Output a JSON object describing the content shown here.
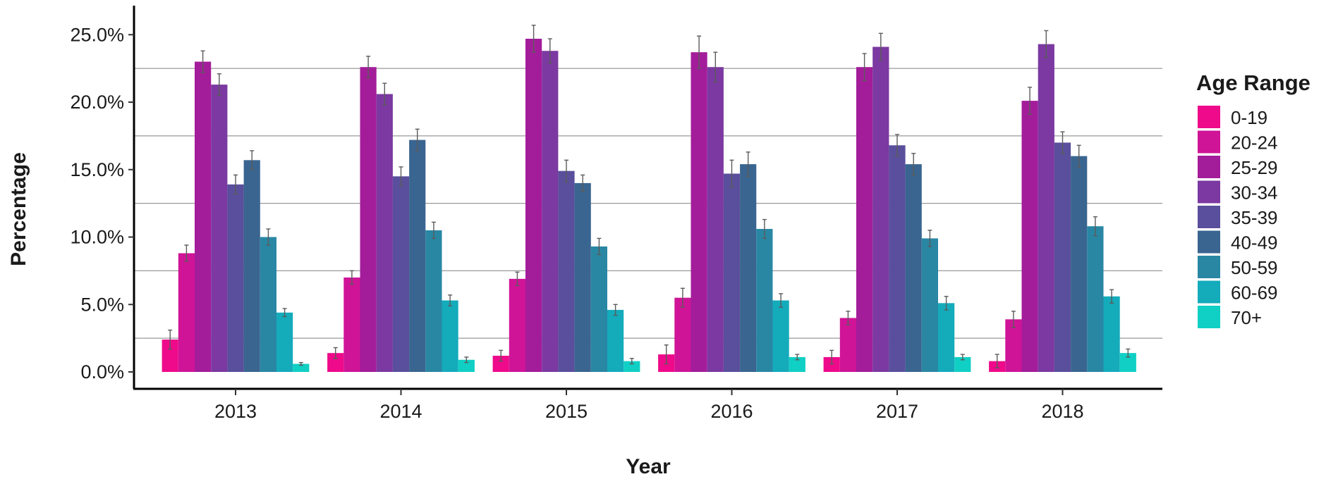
{
  "chart_data": {
    "type": "bar",
    "xlabel": "Year",
    "ylabel": "Percentage",
    "legend_title": "Age Range",
    "legend_position": "right",
    "ylim": [
      0,
      26.4
    ],
    "yticks": [
      0,
      5,
      10,
      15,
      20,
      25
    ],
    "ytick_labels": [
      "0.0%",
      "5.0%",
      "10.0%",
      "15.0%",
      "20.0%",
      "25.0%"
    ],
    "grid": "horizontal minor lines at 2.5, 7.5, 12.5, 17.5, 22.5",
    "categories": [
      "2013",
      "2014",
      "2015",
      "2016",
      "2017",
      "2018"
    ],
    "series": [
      {
        "name": "0-19",
        "color": "#ee0a8a",
        "values": [
          2.4,
          1.4,
          1.2,
          1.3,
          1.1,
          0.8
        ],
        "err": [
          0.7,
          0.4,
          0.4,
          0.7,
          0.5,
          0.5
        ]
      },
      {
        "name": "20-24",
        "color": "#cf1497",
        "values": [
          8.8,
          7.0,
          6.9,
          5.5,
          4.0,
          3.9
        ],
        "err": [
          0.6,
          0.5,
          0.5,
          0.7,
          0.5,
          0.6
        ]
      },
      {
        "name": "25-29",
        "color": "#a31d9a",
        "values": [
          23.0,
          22.6,
          24.7,
          23.7,
          22.6,
          20.1
        ],
        "err": [
          0.8,
          0.8,
          1.0,
          1.2,
          1.0,
          1.0
        ]
      },
      {
        "name": "30-34",
        "color": "#7b39a1",
        "values": [
          21.3,
          20.6,
          23.8,
          22.6,
          24.1,
          24.3
        ],
        "err": [
          0.8,
          0.8,
          0.9,
          1.1,
          1.0,
          1.0
        ]
      },
      {
        "name": "35-39",
        "color": "#5a4f9c",
        "values": [
          13.9,
          14.5,
          14.9,
          14.7,
          16.8,
          17.0
        ],
        "err": [
          0.7,
          0.7,
          0.8,
          1.0,
          0.8,
          0.8
        ]
      },
      {
        "name": "40-49",
        "color": "#3a6590",
        "values": [
          15.7,
          17.2,
          14.0,
          15.4,
          15.4,
          16.0
        ],
        "err": [
          0.7,
          0.8,
          0.6,
          0.9,
          0.8,
          0.8
        ]
      },
      {
        "name": "50-59",
        "color": "#2987a4",
        "values": [
          10.0,
          10.5,
          9.3,
          10.6,
          9.9,
          10.8
        ],
        "err": [
          0.6,
          0.6,
          0.6,
          0.7,
          0.6,
          0.7
        ]
      },
      {
        "name": "60-69",
        "color": "#14abbb",
        "values": [
          4.4,
          5.3,
          4.6,
          5.3,
          5.1,
          5.6
        ],
        "err": [
          0.3,
          0.4,
          0.4,
          0.5,
          0.5,
          0.5
        ]
      },
      {
        "name": "70+",
        "color": "#10cfc4",
        "values": [
          0.6,
          0.9,
          0.8,
          1.1,
          1.1,
          1.4
        ],
        "err": [
          0.1,
          0.2,
          0.2,
          0.2,
          0.2,
          0.3
        ]
      }
    ]
  }
}
